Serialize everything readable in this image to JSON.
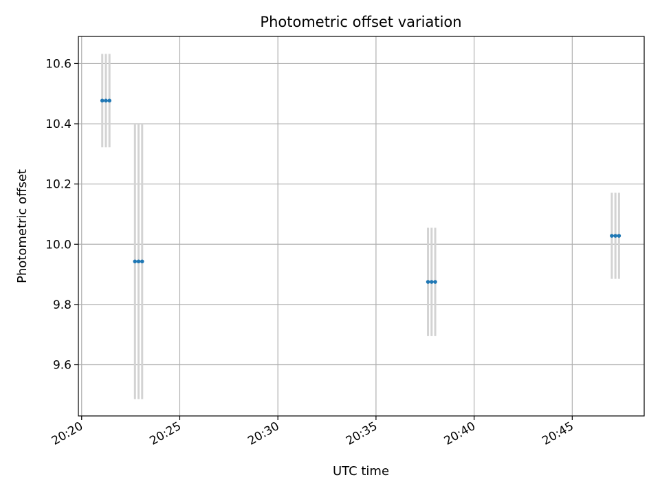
{
  "chart_data": {
    "type": "scatter",
    "title": "Photometric offset variation",
    "xlabel": "UTC time",
    "ylabel": "Photometric offset",
    "x_axis_kind": "time",
    "xlim": [
      "20:19:50",
      "20:48:40"
    ],
    "ylim": [
      9.43,
      10.69
    ],
    "x_ticks": [
      "20:20",
      "20:25",
      "20:30",
      "20:35",
      "20:40",
      "20:45"
    ],
    "y_ticks": [
      "9.6",
      "9.8",
      "10.0",
      "10.2",
      "10.4",
      "10.6"
    ],
    "grid": true,
    "legend": "none",
    "marker_color": "#1f77b4",
    "errorbar_color": "#d3d3d3",
    "points": [
      {
        "time": "20:21:03",
        "y": 10.477,
        "yerr": 0.155
      },
      {
        "time": "20:21:14",
        "y": 10.477,
        "yerr": 0.155
      },
      {
        "time": "20:21:25",
        "y": 10.477,
        "yerr": 0.155
      },
      {
        "time": "20:22:43",
        "y": 9.943,
        "yerr": 0.457
      },
      {
        "time": "20:22:54",
        "y": 9.943,
        "yerr": 0.457
      },
      {
        "time": "20:23:05",
        "y": 9.943,
        "yerr": 0.457
      },
      {
        "time": "20:37:39",
        "y": 9.875,
        "yerr": 0.18
      },
      {
        "time": "20:37:50",
        "y": 9.875,
        "yerr": 0.18
      },
      {
        "time": "20:38:01",
        "y": 9.875,
        "yerr": 0.18
      },
      {
        "time": "20:47:01",
        "y": 10.028,
        "yerr": 0.143
      },
      {
        "time": "20:47:12",
        "y": 10.028,
        "yerr": 0.143
      },
      {
        "time": "20:47:23",
        "y": 10.028,
        "yerr": 0.143
      }
    ]
  }
}
